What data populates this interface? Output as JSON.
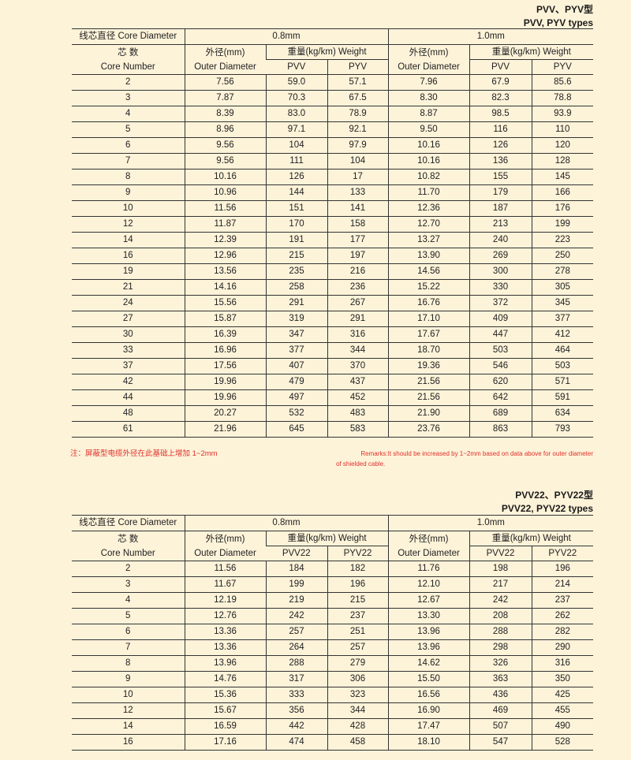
{
  "tables": [
    {
      "title_cn": "PVV、PYV型",
      "title_en": "PVV, PYV types",
      "header": {
        "core_diameter": "线芯直径 Core Diameter",
        "d1": "0.8mm",
        "d2": "1.0mm",
        "core_number_cn": "芯 数",
        "core_number_en": "Core Number",
        "outer_cn": "外径(mm)",
        "outer_en": "Outer Diameter",
        "weight": "重量(kg/km) Weight",
        "type_a": "PVV",
        "type_b": "PYV"
      },
      "rows": [
        [
          "2",
          "7.56",
          "59.0",
          "57.1",
          "7.96",
          "67.9",
          "85.6"
        ],
        [
          "3",
          "7.87",
          "70.3",
          "67.5",
          "8.30",
          "82.3",
          "78.8"
        ],
        [
          "4",
          "8.39",
          "83.0",
          "78.9",
          "8.87",
          "98.5",
          "93.9"
        ],
        [
          "5",
          "8.96",
          "97.1",
          "92.1",
          "9.50",
          "116",
          "110"
        ],
        [
          "6",
          "9.56",
          "104",
          "97.9",
          "10.16",
          "126",
          "120"
        ],
        [
          "7",
          "9.56",
          "111",
          "104",
          "10.16",
          "136",
          "128"
        ],
        [
          "8",
          "10.16",
          "126",
          "17",
          "10.82",
          "155",
          "145"
        ],
        [
          "9",
          "10.96",
          "144",
          "133",
          "11.70",
          "179",
          "166"
        ],
        [
          "10",
          "11.56",
          "151",
          "141",
          "12.36",
          "187",
          "176"
        ],
        [
          "12",
          "11.87",
          "170",
          "158",
          "12.70",
          "213",
          "199"
        ],
        [
          "14",
          "12.39",
          "191",
          "177",
          "13.27",
          "240",
          "223"
        ],
        [
          "16",
          "12.96",
          "215",
          "197",
          "13.90",
          "269",
          "250"
        ],
        [
          "19",
          "13.56",
          "235",
          "216",
          "14.56",
          "300",
          "278"
        ],
        [
          "21",
          "14.16",
          "258",
          "236",
          "15.22",
          "330",
          "305"
        ],
        [
          "24",
          "15.56",
          "291",
          "267",
          "16.76",
          "372",
          "345"
        ],
        [
          "27",
          "15.87",
          "319",
          "291",
          "17.10",
          "409",
          "377"
        ],
        [
          "30",
          "16.39",
          "347",
          "316",
          "17.67",
          "447",
          "412"
        ],
        [
          "33",
          "16.96",
          "377",
          "344",
          "18.70",
          "503",
          "464"
        ],
        [
          "37",
          "17.56",
          "407",
          "370",
          "19.36",
          "546",
          "503"
        ],
        [
          "42",
          "19.96",
          "479",
          "437",
          "21.56",
          "620",
          "571"
        ],
        [
          "44",
          "19.96",
          "497",
          "452",
          "21.56",
          "642",
          "591"
        ],
        [
          "48",
          "20.27",
          "532",
          "483",
          "21.90",
          "689",
          "634"
        ],
        [
          "61",
          "21.96",
          "645",
          "583",
          "23.76",
          "863",
          "793"
        ]
      ]
    },
    {
      "title_cn": "PVV22、PYV22型",
      "title_en": "PVV22, PYV22 types",
      "header": {
        "core_diameter": "线芯直径 Core Diameter",
        "d1": "0.8mm",
        "d2": "1.0mm",
        "core_number_cn": "芯 数",
        "core_number_en": "Core Number",
        "outer_cn": "外径(mm)",
        "outer_en": "Outer Diameter",
        "weight": "重量(kg/km) Weight",
        "type_a": "PVV22",
        "type_b": "PYV22"
      },
      "rows": [
        [
          "2",
          "11.56",
          "184",
          "182",
          "11.76",
          "198",
          "196"
        ],
        [
          "3",
          "11.67",
          "199",
          "196",
          "12.10",
          "217",
          "214"
        ],
        [
          "4",
          "12.19",
          "219",
          "215",
          "12.67",
          "242",
          "237"
        ],
        [
          "5",
          "12.76",
          "242",
          "237",
          "13.30",
          "208",
          "262"
        ],
        [
          "6",
          "13.36",
          "257",
          "251",
          "13.96",
          "288",
          "282"
        ],
        [
          "7",
          "13.36",
          "264",
          "257",
          "13.96",
          "298",
          "290"
        ],
        [
          "8",
          "13.96",
          "288",
          "279",
          "14.62",
          "326",
          "316"
        ],
        [
          "9",
          "14.76",
          "317",
          "306",
          "15.50",
          "363",
          "350"
        ],
        [
          "10",
          "15.36",
          "333",
          "323",
          "16.56",
          "436",
          "425"
        ],
        [
          "12",
          "15.67",
          "356",
          "344",
          "16.90",
          "469",
          "455"
        ],
        [
          "14",
          "16.59",
          "442",
          "428",
          "17.47",
          "507",
          "490"
        ],
        [
          "16",
          "17.16",
          "474",
          "458",
          "18.10",
          "547",
          "528"
        ]
      ]
    }
  ],
  "remarks": {
    "cn": "注：屏蔽型电缆外径在此基础上增加 1~2mm",
    "en_line1": "Remarks:It should be increased by 1~2mm based on data above for outer diameter",
    "en_line2": "of shielded cable."
  },
  "colors": {
    "background": "#fdf3d9",
    "remark": "#e0302a",
    "text": "#222222"
  }
}
